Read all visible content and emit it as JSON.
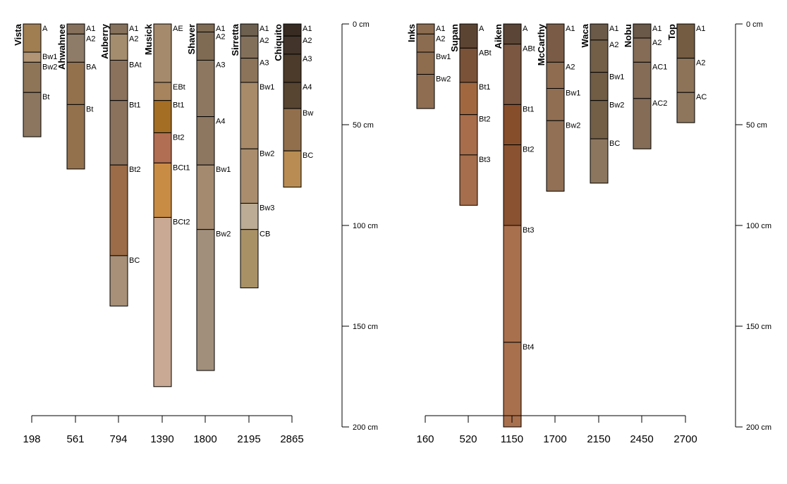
{
  "chart_data": [
    {
      "type": "soil-profile-sketch",
      "depth_unit": "cm",
      "depth_ticks": [
        "0 cm",
        "50 cm",
        "100 cm",
        "150 cm",
        "200 cm"
      ],
      "depth_tick_values": [
        0,
        50,
        100,
        150,
        200
      ],
      "ylim": [
        0,
        200
      ],
      "x_ticks": [
        "198",
        "561",
        "794",
        "1390",
        "1800",
        "2195",
        "2865"
      ],
      "profiles": [
        {
          "name": "Vista",
          "horizons": [
            {
              "name": "A",
              "top": 0,
              "bottom": 14,
              "color": "#A07E52"
            },
            {
              "name": "Bw1",
              "top": 14,
              "bottom": 19,
              "color": "#B19575"
            },
            {
              "name": "Bw2",
              "top": 19,
              "bottom": 34,
              "color": "#8F7558"
            },
            {
              "name": "Bt",
              "top": 34,
              "bottom": 56,
              "color": "#8C7660"
            }
          ]
        },
        {
          "name": "Ahwahnee",
          "horizons": [
            {
              "name": "A1",
              "top": 0,
              "bottom": 5,
              "color": "#86705C"
            },
            {
              "name": "A2",
              "top": 5,
              "bottom": 19,
              "color": "#8E7C68"
            },
            {
              "name": "BA",
              "top": 19,
              "bottom": 40,
              "color": "#93714D"
            },
            {
              "name": "Bt",
              "top": 40,
              "bottom": 72,
              "color": "#93714D"
            }
          ]
        },
        {
          "name": "Auberry",
          "horizons": [
            {
              "name": "A1",
              "top": 0,
              "bottom": 5,
              "color": "#86715C"
            },
            {
              "name": "A2",
              "top": 5,
              "bottom": 18,
              "color": "#A48D6E"
            },
            {
              "name": "BAt",
              "top": 18,
              "bottom": 38,
              "color": "#8A725C"
            },
            {
              "name": "Bt1",
              "top": 38,
              "bottom": 70,
              "color": "#8A725C"
            },
            {
              "name": "Bt2",
              "top": 70,
              "bottom": 115,
              "color": "#9B6C47"
            },
            {
              "name": "BC",
              "top": 115,
              "bottom": 140,
              "color": "#A79077"
            }
          ]
        },
        {
          "name": "Musick",
          "horizons": [
            {
              "name": "AE",
              "top": 0,
              "bottom": 29,
              "color": "#A58A6C"
            },
            {
              "name": "EBt",
              "top": 29,
              "bottom": 38,
              "color": "#A7845E"
            },
            {
              "name": "Bt1",
              "top": 38,
              "bottom": 54,
              "color": "#A46E25"
            },
            {
              "name": "Bt2",
              "top": 54,
              "bottom": 69,
              "color": "#B26E52"
            },
            {
              "name": "BCt1",
              "top": 69,
              "bottom": 96,
              "color": "#C98C45"
            },
            {
              "name": "BCt2",
              "top": 96,
              "bottom": 180,
              "color": "#C9A993"
            }
          ]
        },
        {
          "name": "Shaver",
          "horizons": [
            {
              "name": "A1",
              "top": 0,
              "bottom": 4,
              "color": "#7F6A54"
            },
            {
              "name": "A2",
              "top": 4,
              "bottom": 18,
              "color": "#7F6A54"
            },
            {
              "name": "A3",
              "top": 18,
              "bottom": 46,
              "color": "#8D7760"
            },
            {
              "name": "A4",
              "top": 46,
              "bottom": 70,
              "color": "#8D7760"
            },
            {
              "name": "Bw1",
              "top": 70,
              "bottom": 102,
              "color": "#A48B70"
            },
            {
              "name": "Bw2",
              "top": 102,
              "bottom": 172,
              "color": "#A28F7B"
            }
          ]
        },
        {
          "name": "Sirretta",
          "horizons": [
            {
              "name": "A1",
              "top": 0,
              "bottom": 6,
              "color": "#6E604F"
            },
            {
              "name": "A2",
              "top": 6,
              "bottom": 17,
              "color": "#83705B"
            },
            {
              "name": "A3",
              "top": 17,
              "bottom": 29,
              "color": "#8C745A"
            },
            {
              "name": "Bw1",
              "top": 29,
              "bottom": 62,
              "color": "#A88B69"
            },
            {
              "name": "Bw2",
              "top": 62,
              "bottom": 89,
              "color": "#A98D6D"
            },
            {
              "name": "Bw3",
              "top": 89,
              "bottom": 102,
              "color": "#BCAC95"
            },
            {
              "name": "CB",
              "top": 102,
              "bottom": 131,
              "color": "#A99166"
            }
          ]
        },
        {
          "name": "Chiquito",
          "horizons": [
            {
              "name": "A1",
              "top": 0,
              "bottom": 6,
              "color": "#372B22"
            },
            {
              "name": "A2",
              "top": 6,
              "bottom": 15,
              "color": "#42342A"
            },
            {
              "name": "A3",
              "top": 15,
              "bottom": 29,
              "color": "#4C3B2A"
            },
            {
              "name": "A4",
              "top": 29,
              "bottom": 42,
              "color": "#574431"
            },
            {
              "name": "Bw",
              "top": 42,
              "bottom": 63,
              "color": "#926F4C"
            },
            {
              "name": "BC",
              "top": 63,
              "bottom": 81,
              "color": "#B88C52"
            }
          ]
        }
      ]
    },
    {
      "type": "soil-profile-sketch",
      "depth_unit": "cm",
      "depth_ticks": [
        "0 cm",
        "50 cm",
        "100 cm",
        "150 cm",
        "200 cm"
      ],
      "depth_tick_values": [
        0,
        50,
        100,
        150,
        200
      ],
      "ylim": [
        0,
        200
      ],
      "x_ticks": [
        "160",
        "520",
        "1150",
        "1700",
        "2150",
        "2450",
        "2700"
      ],
      "profiles": [
        {
          "name": "Inks",
          "horizons": [
            {
              "name": "A1",
              "top": 0,
              "bottom": 5,
              "color": "#8C6C50"
            },
            {
              "name": "A2",
              "top": 5,
              "bottom": 14,
              "color": "#8C6C50"
            },
            {
              "name": "Bw1",
              "top": 14,
              "bottom": 25,
              "color": "#8E6C4E"
            },
            {
              "name": "Bw2",
              "top": 25,
              "bottom": 42,
              "color": "#8E6D50"
            }
          ]
        },
        {
          "name": "Supan",
          "horizons": [
            {
              "name": "A",
              "top": 0,
              "bottom": 12,
              "color": "#5C4433"
            },
            {
              "name": "ABt",
              "top": 12,
              "bottom": 29,
              "color": "#7A5238"
            },
            {
              "name": "Bt1",
              "top": 29,
              "bottom": 45,
              "color": "#A1683F"
            },
            {
              "name": "Bt2",
              "top": 45,
              "bottom": 65,
              "color": "#A86D4A"
            },
            {
              "name": "Bt3",
              "top": 65,
              "bottom": 90,
              "color": "#A66E4C"
            }
          ]
        },
        {
          "name": "Aiken",
          "horizons": [
            {
              "name": "A",
              "top": 0,
              "bottom": 10,
              "color": "#5A4536"
            },
            {
              "name": "ABt",
              "top": 10,
              "bottom": 40,
              "color": "#7B5640"
            },
            {
              "name": "Bt1",
              "top": 40,
              "bottom": 60,
              "color": "#874E2B"
            },
            {
              "name": "Bt2",
              "top": 60,
              "bottom": 100,
              "color": "#8A5230"
            },
            {
              "name": "Bt3",
              "top": 100,
              "bottom": 158,
              "color": "#A9704D"
            },
            {
              "name": "Bt4",
              "top": 158,
              "bottom": 200,
              "color": "#A9704D"
            }
          ]
        },
        {
          "name": "McCarthy",
          "horizons": [
            {
              "name": "A1",
              "top": 0,
              "bottom": 19,
              "color": "#7A5C46"
            },
            {
              "name": "A2",
              "top": 19,
              "bottom": 32,
              "color": "#8F6C4F"
            },
            {
              "name": "Bw1",
              "top": 32,
              "bottom": 48,
              "color": "#906E52"
            },
            {
              "name": "Bw2",
              "top": 48,
              "bottom": 83,
              "color": "#917055"
            }
          ]
        },
        {
          "name": "Waca",
          "horizons": [
            {
              "name": "A1",
              "top": 0,
              "bottom": 8,
              "color": "#6B5A48"
            },
            {
              "name": "A2",
              "top": 8,
              "bottom": 24,
              "color": "#735F48"
            },
            {
              "name": "Bw1",
              "top": 24,
              "bottom": 38,
              "color": "#715C44"
            },
            {
              "name": "Bw2",
              "top": 38,
              "bottom": 57,
              "color": "#735F46"
            },
            {
              "name": "BC",
              "top": 57,
              "bottom": 79,
              "color": "#8C775E"
            }
          ]
        },
        {
          "name": "Nobu",
          "horizons": [
            {
              "name": "A1",
              "top": 0,
              "bottom": 7,
              "color": "#6A5848"
            },
            {
              "name": "A2",
              "top": 7,
              "bottom": 19,
              "color": "#846C56"
            },
            {
              "name": "AC1",
              "top": 19,
              "bottom": 37,
              "color": "#846C56"
            },
            {
              "name": "AC2",
              "top": 37,
              "bottom": 62,
              "color": "#846C56"
            }
          ]
        },
        {
          "name": "Top",
          "horizons": [
            {
              "name": "A1",
              "top": 0,
              "bottom": 17,
              "color": "#745C42"
            },
            {
              "name": "A2",
              "top": 17,
              "bottom": 34,
              "color": "#8D7458"
            },
            {
              "name": "AC",
              "top": 34,
              "bottom": 49,
              "color": "#8E765C"
            }
          ]
        }
      ]
    }
  ]
}
